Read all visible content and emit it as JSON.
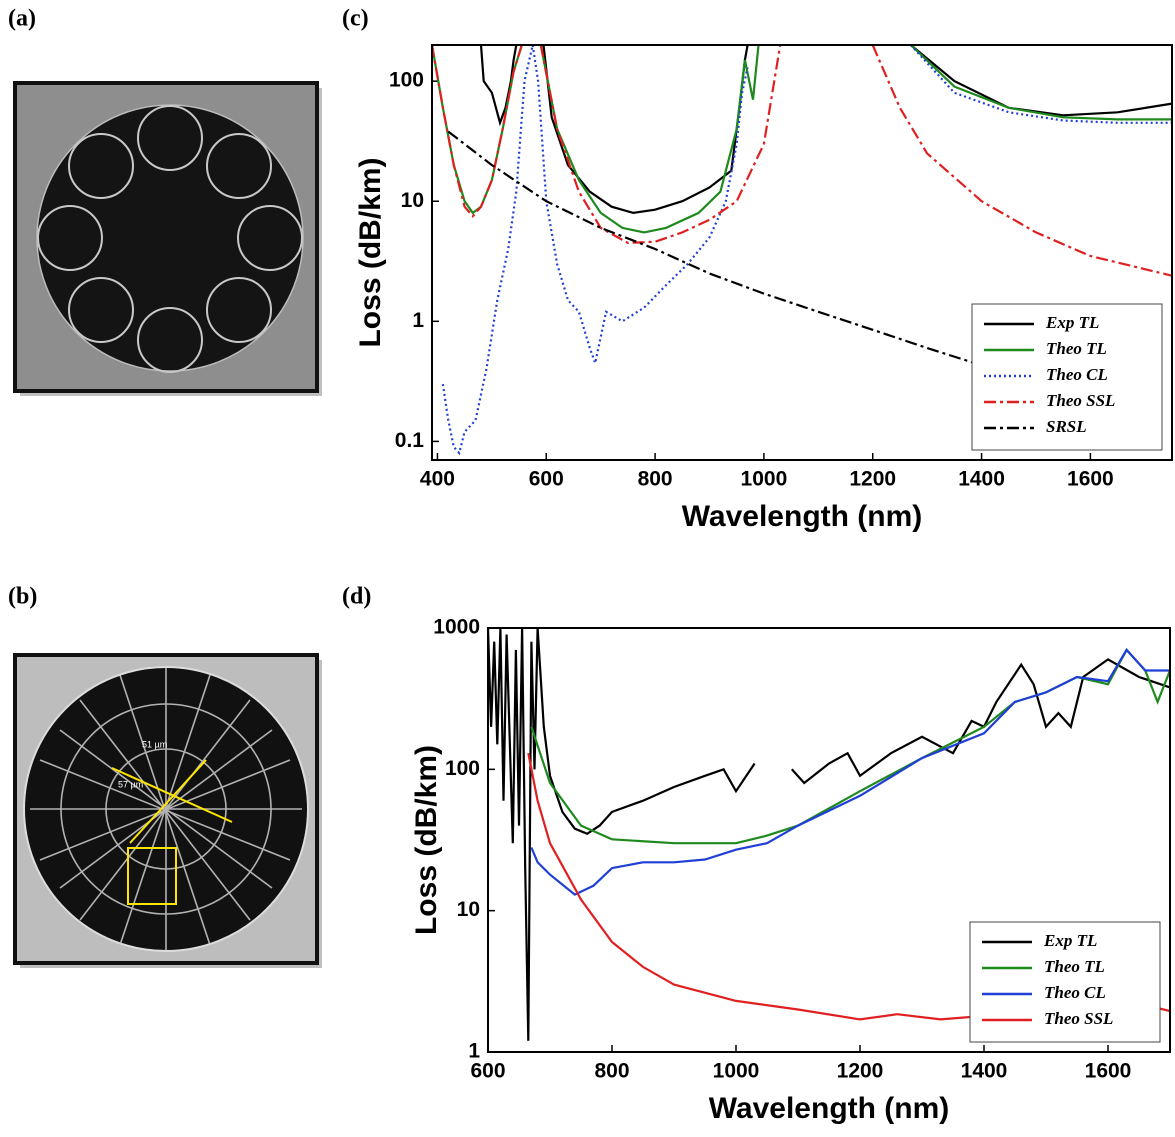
{
  "panel_labels": [
    "(a)",
    "(b)",
    "(c)",
    "(d)"
  ],
  "image_b_annotations": [
    "51 µm",
    "57 µm"
  ],
  "chart_data": [
    {
      "type": "line",
      "xlabel": "Wavelength (nm)",
      "ylabel": "Loss (dB/km)",
      "yscale": "log",
      "xlim": [
        390,
        1750
      ],
      "ylim": [
        0.07,
        200
      ],
      "xticks": [
        400,
        600,
        800,
        1000,
        1200,
        1400,
        1600
      ],
      "yticks": [
        0.1,
        1,
        10,
        100
      ],
      "legend": "lower right",
      "series": [
        {
          "name": "Exp TL",
          "color": "#000000",
          "dash": "solid",
          "x": [
            480,
            485,
            500,
            515,
            525,
            535,
            540,
            545,
            null,
            595,
            610,
            640,
            680,
            720,
            760,
            800,
            850,
            900,
            940,
            955,
            965,
            970,
            null,
            1270,
            1350,
            1450,
            1550,
            1650,
            1750
          ],
          "values": [
            200,
            100,
            80,
            45,
            60,
            100,
            150,
            200,
            null,
            200,
            50,
            20,
            12,
            9,
            8,
            8.5,
            10,
            13,
            18,
            60,
            150,
            200,
            null,
            200,
            100,
            60,
            52,
            55,
            65
          ]
        },
        {
          "name": "Theo TL",
          "color": "#1e8a1e",
          "dash": "solid",
          "x": [
            390,
            410,
            430,
            450,
            465,
            480,
            500,
            520,
            540,
            555,
            null,
            590,
            620,
            660,
            700,
            740,
            780,
            820,
            880,
            920,
            950,
            965,
            980,
            990,
            null,
            1270,
            1350,
            1450,
            1550,
            1650,
            1750
          ],
          "values": [
            200,
            60,
            20,
            10,
            8,
            9,
            15,
            40,
            120,
            200,
            null,
            200,
            40,
            15,
            8,
            6,
            5.5,
            6,
            8,
            12,
            40,
            150,
            70,
            200,
            null,
            200,
            90,
            60,
            50,
            48,
            48
          ]
        },
        {
          "name": "Theo CL",
          "color": "#1f3fd6",
          "dash": "dotted",
          "x": [
            410,
            420,
            430,
            440,
            450,
            470,
            490,
            510,
            530,
            545,
            560,
            575,
            585,
            600,
            620,
            640,
            660,
            680,
            690,
            710,
            740,
            780,
            820,
            860,
            900,
            930,
            950,
            960,
            970,
            null,
            1270,
            1350,
            1450,
            1550,
            1650,
            1750
          ],
          "values": [
            0.3,
            0.15,
            0.09,
            0.08,
            0.12,
            0.15,
            0.4,
            1.5,
            4,
            12,
            100,
            200,
            100,
            10,
            3,
            1.5,
            1.2,
            0.6,
            0.45,
            1.2,
            1.0,
            1.3,
            2,
            3,
            5,
            10,
            30,
            80,
            130,
            null,
            200,
            80,
            55,
            47,
            45,
            45
          ]
        },
        {
          "name": "Theo SSL",
          "color": "#e02020",
          "dash": "dashdot",
          "x": [
            390,
            410,
            430,
            450,
            465,
            480,
            500,
            520,
            540,
            555,
            null,
            590,
            620,
            660,
            700,
            750,
            800,
            850,
            900,
            950,
            1000,
            1030,
            null,
            1200,
            1250,
            1300,
            1400,
            1500,
            1600,
            1750
          ],
          "values": [
            200,
            60,
            20,
            9,
            7.5,
            9,
            15,
            40,
            120,
            200,
            null,
            200,
            40,
            12,
            6,
            4.5,
            4.6,
            5.5,
            7,
            10,
            30,
            200,
            null,
            200,
            60,
            25,
            10,
            5.5,
            3.5,
            2.4
          ]
        },
        {
          "name": "SRSL",
          "color": "#000000",
          "dash": "dashdot",
          "x": [
            420,
            500,
            600,
            700,
            800,
            900,
            1000,
            1100,
            1200,
            1300,
            1400,
            1500
          ],
          "values": [
            38,
            20,
            10,
            6,
            4,
            2.5,
            1.7,
            1.2,
            0.85,
            0.6,
            0.43,
            0.33
          ]
        }
      ]
    },
    {
      "type": "line",
      "xlabel": "Wavelength (nm)",
      "ylabel": "Loss (dB/km)",
      "yscale": "log",
      "xlim": [
        600,
        1700
      ],
      "ylim": [
        1,
        1000
      ],
      "xticks": [
        600,
        800,
        1000,
        1200,
        1400,
        1600
      ],
      "yticks": [
        1,
        10,
        100,
        1000
      ],
      "legend": "lower right",
      "series": [
        {
          "name": "Exp TL",
          "color": "#000000",
          "dash": "solid",
          "x": [
            600,
            605,
            610,
            615,
            620,
            625,
            630,
            640,
            645,
            650,
            655,
            660,
            665,
            670,
            675,
            680,
            690,
            700,
            720,
            740,
            760,
            780,
            800,
            850,
            900,
            950,
            980,
            1000,
            1030,
            null,
            1090,
            1110,
            1150,
            1180,
            1200,
            1250,
            1300,
            1350,
            1380,
            1400,
            1420,
            1460,
            1480,
            1500,
            1520,
            1540,
            1560,
            1600,
            1650,
            1700
          ],
          "values": [
            1000,
            200,
            800,
            150,
            1000,
            60,
            900,
            30,
            700,
            40,
            1000,
            20,
            1.2,
            800,
            100,
            1000,
            200,
            90,
            50,
            38,
            35,
            40,
            50,
            60,
            75,
            90,
            100,
            70,
            110,
            null,
            100,
            80,
            110,
            130,
            90,
            130,
            170,
            130,
            220,
            200,
            300,
            550,
            400,
            200,
            250,
            200,
            450,
            600,
            450,
            380
          ]
        },
        {
          "name": "Theo TL",
          "color": "#1e8a1e",
          "dash": "solid",
          "x": [
            670,
            700,
            750,
            800,
            900,
            1000,
            1050,
            1100,
            1200,
            1300,
            1400,
            1450,
            1500,
            1550,
            1600,
            1630,
            1660,
            1680,
            1700
          ],
          "values": [
            200,
            80,
            40,
            32,
            30,
            30,
            34,
            40,
            70,
            120,
            200,
            300,
            350,
            450,
            400,
            700,
            500,
            300,
            500
          ]
        },
        {
          "name": "Theo CL",
          "color": "#1f3fd6",
          "dash": "solid",
          "x": [
            670,
            680,
            700,
            740,
            770,
            800,
            850,
            900,
            950,
            1000,
            1050,
            1100,
            1200,
            1300,
            1400,
            1450,
            1500,
            1550,
            1600,
            1630,
            1660,
            1700
          ],
          "values": [
            28,
            22,
            18,
            13,
            15,
            20,
            22,
            22,
            23,
            27,
            30,
            40,
            65,
            120,
            180,
            300,
            350,
            450,
            420,
            700,
            500,
            500
          ]
        },
        {
          "name": "Theo SSL",
          "color": "#e02020",
          "dash": "solid",
          "x": [
            665,
            680,
            700,
            750,
            800,
            850,
            900,
            1000,
            1100,
            1200,
            1260,
            1330,
            1400,
            1450,
            1550,
            1650,
            1700
          ],
          "values": [
            130,
            60,
            30,
            12,
            6,
            4,
            3,
            2.3,
            2,
            1.7,
            1.85,
            1.7,
            1.8,
            2.05,
            2.1,
            2.2,
            1.95
          ]
        }
      ]
    }
  ]
}
